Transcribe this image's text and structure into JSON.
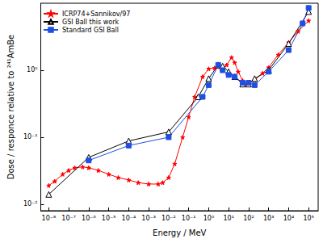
{
  "chart_data": {
    "type": "line",
    "x_label": "Energy / MeV",
    "y_label": "Dose / responce relative to ²⁴¹AmBe",
    "log": true,
    "grid": false,
    "legend": "top-left",
    "xlim": [
      4e-09,
      300000.0
    ],
    "ylim": [
      0.008,
      10
    ],
    "xticks": [
      {
        "value": 1e-08,
        "label": "10⁻⁸"
      },
      {
        "value": 1e-07,
        "label": "10⁻⁷"
      },
      {
        "value": 1e-06,
        "label": "10⁻⁶"
      },
      {
        "value": 1e-05,
        "label": "10⁻⁵"
      },
      {
        "value": 0.0001,
        "label": "10⁻⁴"
      },
      {
        "value": 0.001,
        "label": "10⁻³"
      },
      {
        "value": 0.01,
        "label": "10⁻²"
      },
      {
        "value": 0.1,
        "label": "10⁻¹"
      },
      {
        "value": 1,
        "label": "10⁰"
      },
      {
        "value": 10,
        "label": "10¹"
      },
      {
        "value": 100,
        "label": "10²"
      },
      {
        "value": 1000,
        "label": "10³"
      },
      {
        "value": 10000,
        "label": "10⁴"
      },
      {
        "value": 100000,
        "label": "10⁵"
      }
    ],
    "yticks": [
      {
        "value": 0.01,
        "label": "10⁻²"
      },
      {
        "value": 0.1,
        "label": "10⁻¹"
      },
      {
        "value": 1,
        "label": "10⁰"
      }
    ],
    "series": [
      {
        "name": "ICRP74+Sannikov/97",
        "color": "#ff0000",
        "marker": "star",
        "line_style": "solid",
        "x": [
          1e-08,
          2e-08,
          5e-08,
          1e-07,
          2e-07,
          5e-07,
          1e-06,
          3e-06,
          1e-05,
          3e-05,
          0.0001,
          0.0003,
          0.001,
          0.003,
          0.005,
          0.01,
          0.02,
          0.05,
          0.1,
          0.2,
          0.5,
          1,
          2,
          5,
          8,
          14,
          20,
          30,
          50,
          70,
          100,
          200,
          500,
          1000,
          3000,
          10000,
          30000,
          100000
        ],
        "values": [
          0.019,
          0.022,
          0.028,
          0.032,
          0.035,
          0.036,
          0.035,
          0.032,
          0.028,
          0.025,
          0.023,
          0.021,
          0.02,
          0.02,
          0.021,
          0.025,
          0.04,
          0.1,
          0.2,
          0.4,
          0.8,
          1.05,
          1.08,
          1.05,
          1.2,
          1.55,
          1.3,
          0.95,
          0.7,
          0.62,
          0.65,
          0.72,
          0.9,
          1.1,
          1.7,
          2.6,
          3.8,
          5.5
        ]
      },
      {
        "name": "GSI Ball this work",
        "color": "#000000",
        "marker": "triangle",
        "line_style": "solid",
        "x": [
          1e-08,
          1e-06,
          0.0001,
          0.01,
          0.3,
          1,
          3,
          5,
          10,
          20,
          50,
          100,
          200,
          1000,
          10000,
          100000
        ],
        "values": [
          0.014,
          0.05,
          0.088,
          0.12,
          0.4,
          0.75,
          1.2,
          1.15,
          0.95,
          0.8,
          0.62,
          0.62,
          0.75,
          1.0,
          2.5,
          7.5
        ]
      },
      {
        "name": "Standard GSI Ball",
        "color": "#1f4fe0",
        "marker": "square",
        "line_style": "solid",
        "x": [
          1e-06,
          0.0001,
          0.01,
          0.5,
          1,
          3,
          5,
          10,
          20,
          50,
          100,
          200,
          1000,
          10000,
          50000,
          100000
        ],
        "values": [
          0.045,
          0.075,
          0.1,
          0.4,
          0.6,
          1.2,
          1.0,
          0.85,
          0.8,
          0.65,
          0.65,
          0.6,
          0.95,
          2.0,
          5.0,
          8.5
        ]
      }
    ]
  }
}
